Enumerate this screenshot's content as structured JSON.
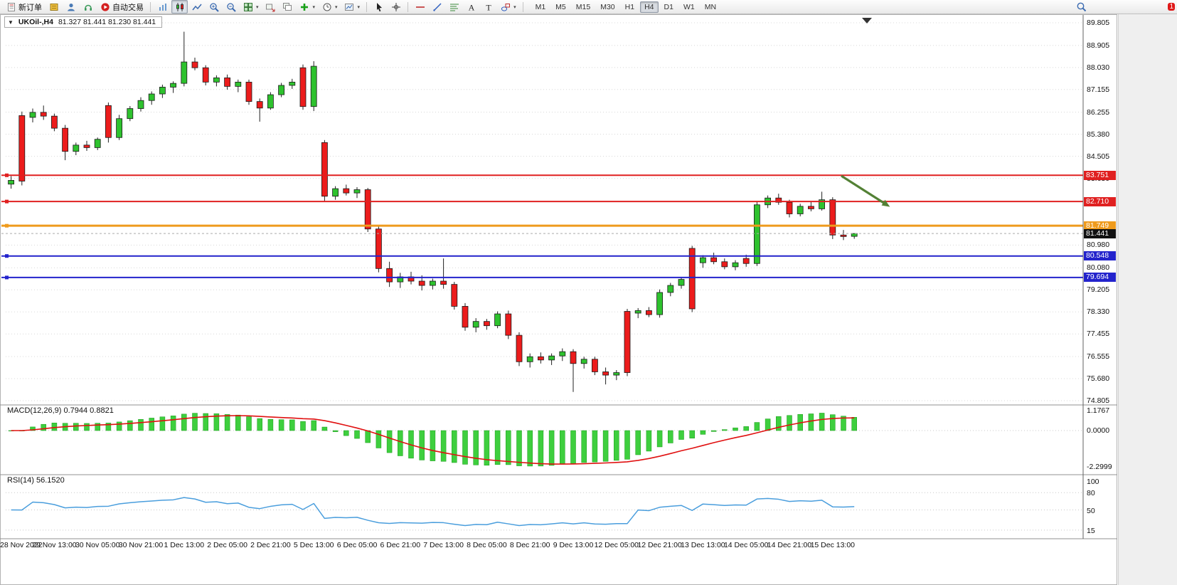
{
  "app": {
    "notification_count": "1"
  },
  "toolbar": {
    "new_order_label": "新订单",
    "auto_trading_label": "自动交易",
    "timeframes": [
      "M1",
      "M5",
      "M15",
      "M30",
      "H1",
      "H4",
      "D1",
      "W1",
      "MN"
    ],
    "active_timeframe": "H4",
    "icons": [
      "new-order",
      "market-watch",
      "data-window",
      "navigator",
      "auto-trading",
      "bar-chart",
      "candlestick-chart",
      "line-chart",
      "zoom-in",
      "zoom-out",
      "tile-windows",
      "arrange-windows",
      "cascade-windows",
      "add-indicator",
      "period-selector",
      "chart-template",
      "cursor",
      "crosshair",
      "horizontal-line",
      "trendline",
      "fibonacci",
      "text",
      "text-label",
      "shapes",
      "search",
      "notifications"
    ]
  },
  "chart_header": {
    "collapse_icon": "▼",
    "symbol_period": "UKOil-,H4",
    "ohlc_text": "81.327 81.441 81.230 81.441"
  },
  "chart_data": {
    "type": "candlestick",
    "symbol": "UKOil",
    "timeframe": "H4",
    "ylim": [
      74.805,
      89.805
    ],
    "price_axis_labels": [
      "89.805",
      "88.905",
      "88.030",
      "87.155",
      "86.255",
      "85.380",
      "84.505",
      "83.630",
      "80.980",
      "80.080",
      "79.205",
      "78.330",
      "77.455",
      "76.555",
      "75.680",
      "74.805"
    ],
    "time_labels": [
      "28 Nov 2022",
      "29 Nov 13:00",
      "30 Nov 05:00",
      "30 Nov 21:00",
      "1 Dec 13:00",
      "2 Dec 05:00",
      "2 Dec 21:00",
      "5 Dec 13:00",
      "6 Dec 05:00",
      "6 Dec 21:00",
      "7 Dec 13:00",
      "8 Dec 05:00",
      "8 Dec 21:00",
      "9 Dec 13:00",
      "12 Dec 05:00",
      "12 Dec 21:00",
      "13 Dec 13:00",
      "14 Dec 05:00",
      "14 Dec 21:00",
      "15 Dec 13:00"
    ],
    "candles_per_time_label": 4,
    "colors": {
      "bull": "#2ec22e",
      "bear": "#ec1c1c",
      "wick": "#222222",
      "grid": "#d8d8d8"
    },
    "candles": [
      [
        83.4,
        83.72,
        83.22,
        83.55
      ],
      [
        86.12,
        86.28,
        83.35,
        83.52
      ],
      [
        86.05,
        86.4,
        85.85,
        86.25
      ],
      [
        86.25,
        86.52,
        85.95,
        86.1
      ],
      [
        86.1,
        86.2,
        85.5,
        85.62
      ],
      [
        85.62,
        85.75,
        84.35,
        84.7
      ],
      [
        84.7,
        85.05,
        84.55,
        84.95
      ],
      [
        84.95,
        85.12,
        84.72,
        84.85
      ],
      [
        84.85,
        85.25,
        84.75,
        85.18
      ],
      [
        86.52,
        86.64,
        85.05,
        85.25
      ],
      [
        85.25,
        86.15,
        85.15,
        86.0
      ],
      [
        86.0,
        86.5,
        85.9,
        86.4
      ],
      [
        86.4,
        86.85,
        86.28,
        86.72
      ],
      [
        86.72,
        87.08,
        86.55,
        86.98
      ],
      [
        86.98,
        87.35,
        86.82,
        87.25
      ],
      [
        87.25,
        87.48,
        87.02,
        87.4
      ],
      [
        87.4,
        89.45,
        87.28,
        88.25
      ],
      [
        88.25,
        88.42,
        87.92,
        88.02
      ],
      [
        88.02,
        88.12,
        87.32,
        87.45
      ],
      [
        87.45,
        87.72,
        87.28,
        87.62
      ],
      [
        87.62,
        87.75,
        87.15,
        87.28
      ],
      [
        87.28,
        87.55,
        87.05,
        87.45
      ],
      [
        87.45,
        87.55,
        86.55,
        86.68
      ],
      [
        86.68,
        86.8,
        85.88,
        86.42
      ],
      [
        86.42,
        87.05,
        86.35,
        86.95
      ],
      [
        86.95,
        87.42,
        86.85,
        87.32
      ],
      [
        87.32,
        87.58,
        87.18,
        87.45
      ],
      [
        88.02,
        88.15,
        86.35,
        86.48
      ],
      [
        86.48,
        88.28,
        86.3,
        88.08
      ],
      [
        85.05,
        85.15,
        82.7,
        82.92
      ],
      [
        82.92,
        83.32,
        82.78,
        83.22
      ],
      [
        83.22,
        83.38,
        82.95,
        83.05
      ],
      [
        83.05,
        83.28,
        82.85,
        83.18
      ],
      [
        83.18,
        83.25,
        81.5,
        81.62
      ],
      [
        81.62,
        81.78,
        79.9,
        80.05
      ],
      [
        80.05,
        80.32,
        79.32,
        79.52
      ],
      [
        79.52,
        79.88,
        79.28,
        79.72
      ],
      [
        79.72,
        79.92,
        79.42,
        79.55
      ],
      [
        79.55,
        79.78,
        79.18,
        79.38
      ],
      [
        79.38,
        79.65,
        79.22,
        79.55
      ],
      [
        79.55,
        80.45,
        79.25,
        79.42
      ],
      [
        79.42,
        79.52,
        78.42,
        78.55
      ],
      [
        78.55,
        78.68,
        77.58,
        77.72
      ],
      [
        77.72,
        78.08,
        77.52,
        77.95
      ],
      [
        77.95,
        78.05,
        77.62,
        77.78
      ],
      [
        77.78,
        78.35,
        77.68,
        78.25
      ],
      [
        78.25,
        78.38,
        77.25,
        77.4
      ],
      [
        77.4,
        77.52,
        76.18,
        76.35
      ],
      [
        76.35,
        76.68,
        76.12,
        76.55
      ],
      [
        76.55,
        76.72,
        76.28,
        76.42
      ],
      [
        76.42,
        76.68,
        76.22,
        76.58
      ],
      [
        76.58,
        76.88,
        76.38,
        76.75
      ],
      [
        76.75,
        76.85,
        75.15,
        76.28
      ],
      [
        76.28,
        76.55,
        76.08,
        76.45
      ],
      [
        76.45,
        76.55,
        75.82,
        75.95
      ],
      [
        75.95,
        76.12,
        75.45,
        75.82
      ],
      [
        75.82,
        76.02,
        75.62,
        75.92
      ],
      [
        78.35,
        78.45,
        75.78,
        75.92
      ],
      [
        78.28,
        78.48,
        78.08,
        78.38
      ],
      [
        78.38,
        78.52,
        78.12,
        78.22
      ],
      [
        78.22,
        79.22,
        78.1,
        79.1
      ],
      [
        79.1,
        79.48,
        78.95,
        79.38
      ],
      [
        79.38,
        79.72,
        79.25,
        79.62
      ],
      [
        80.85,
        80.95,
        78.32,
        78.45
      ],
      [
        80.28,
        80.58,
        80.08,
        80.48
      ],
      [
        80.48,
        80.68,
        80.22,
        80.32
      ],
      [
        80.32,
        80.45,
        80.02,
        80.12
      ],
      [
        80.12,
        80.38,
        79.98,
        80.28
      ],
      [
        80.45,
        80.6,
        80.12,
        80.25
      ],
      [
        80.25,
        82.7,
        80.15,
        82.58
      ],
      [
        82.58,
        82.95,
        82.45,
        82.85
      ],
      [
        82.85,
        83.02,
        82.58,
        82.68
      ],
      [
        82.68,
        82.78,
        82.08,
        82.22
      ],
      [
        82.22,
        82.62,
        82.12,
        82.52
      ],
      [
        82.52,
        82.72,
        82.32,
        82.42
      ],
      [
        82.42,
        83.1,
        82.35,
        82.78
      ],
      [
        82.78,
        82.88,
        81.22,
        81.38
      ],
      [
        81.38,
        81.58,
        81.18,
        81.32
      ],
      [
        81.327,
        81.441,
        81.23,
        81.441
      ]
    ],
    "horizontal_lines": [
      {
        "price": 83.751,
        "label": "83.751",
        "color": "#e02020",
        "width": 2
      },
      {
        "price": 82.71,
        "label": "82.710",
        "color": "#e02020",
        "width": 2
      },
      {
        "price": 81.749,
        "label": "81.749",
        "color": "#ef9b1d",
        "width": 3
      },
      {
        "price": 80.548,
        "label": "80.548",
        "color": "#2323cc",
        "width": 2
      },
      {
        "price": 79.694,
        "label": "79.694",
        "color": "#2323cc",
        "width": 2
      }
    ],
    "current_price": {
      "price": 81.441,
      "label": "81.441",
      "badge_color": "#111111"
    },
    "arrow_annotation": {
      "from_index": 76.8,
      "from_price": 83.73,
      "to_index": 81.3,
      "to_price": 82.5,
      "color": "#538135"
    }
  },
  "indicators": {
    "macd": {
      "label": "MACD(12,26,9) 0.7944 0.8821",
      "params": [
        12,
        26,
        9
      ],
      "values_text": [
        "0.7944",
        "0.8821"
      ],
      "axis_labels": [
        "1.1767",
        "0.0000",
        "-2.2999"
      ],
      "histogram_color": "#3ecf3e",
      "signal_color": "#e01010"
    },
    "rsi": {
      "label": "RSI(14) 56.1520",
      "period": 14,
      "value_text": "56.1520",
      "axis_labels": [
        "100",
        "80",
        "50",
        "15"
      ],
      "axis_values": [
        100,
        80,
        50,
        15
      ],
      "levels": [
        80,
        50,
        15
      ],
      "line_color": "#4a9edd"
    }
  }
}
